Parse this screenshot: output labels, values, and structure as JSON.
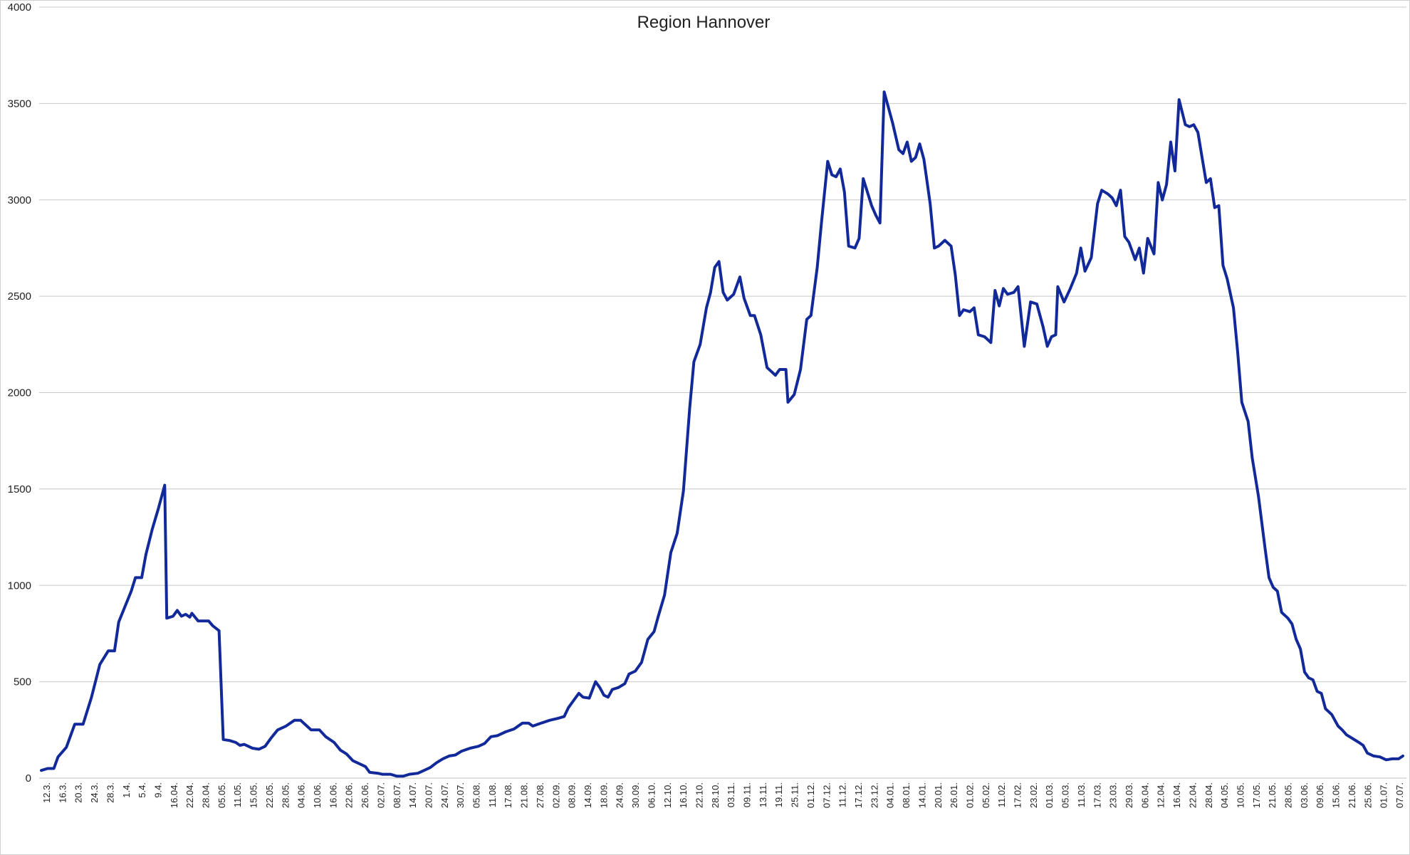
{
  "chart_data": {
    "type": "line",
    "title": "Region Hannover",
    "xlabel": "",
    "ylabel": "",
    "ylim": [
      0,
      4000
    ],
    "yticks": [
      0,
      500,
      1000,
      1500,
      2000,
      2500,
      3000,
      3500,
      4000
    ],
    "grid": "horizontal",
    "legend": "none",
    "line_color": "#12299a",
    "x_tick_labels": [
      "12.3.",
      "16.3.",
      "20.3.",
      "24.3.",
      "28.3.",
      "1.4.",
      "5.4.",
      "9.4.",
      "16.04.",
      "22.04.",
      "28.04.",
      "05.05.",
      "11.05.",
      "15.05.",
      "22.05.",
      "28.05.",
      "04.06.",
      "10.06.",
      "16.06.",
      "22.06.",
      "26.06.",
      "02.07.",
      "08.07.",
      "14.07.",
      "20.07.",
      "24.07.",
      "30.07.",
      "05.08.",
      "11.08.",
      "17.08.",
      "21.08.",
      "27.08.",
      "02.09.",
      "08.09.",
      "14.09.",
      "18.09.",
      "24.09.",
      "30.09.",
      "06.10.",
      "12.10.",
      "16.10.",
      "22.10.",
      "28.10.",
      "03.11.",
      "09.11.",
      "13.11.",
      "19.11.",
      "25.11.",
      "01.12.",
      "07.12.",
      "11.12.",
      "17.12.",
      "23.12.",
      "04.01.",
      "08.01.",
      "14.01.",
      "20.01.",
      "26.01.",
      "01.02.",
      "05.02.",
      "11.02.",
      "17.02.",
      "23.02.",
      "01.03.",
      "05.03.",
      "11.03.",
      "17.03.",
      "23.03.",
      "29.03.",
      "06.04.",
      "12.04.",
      "16.04.",
      "22.04.",
      "28.04.",
      "04.05.",
      "10.05.",
      "17.05.",
      "21.05.",
      "28.05.",
      "03.06.",
      "09.06.",
      "15.06.",
      "21.06.",
      "25.06.",
      "01.07.",
      "07.07."
    ],
    "series": [
      {
        "values": [
          [
            0,
            40
          ],
          [
            3,
            50
          ],
          [
            6,
            50
          ],
          [
            8,
            110
          ],
          [
            12,
            160
          ],
          [
            16,
            280
          ],
          [
            20,
            280
          ],
          [
            24,
            420
          ],
          [
            28,
            590
          ],
          [
            32,
            660
          ],
          [
            35,
            660
          ],
          [
            37,
            810
          ],
          [
            40,
            890
          ],
          [
            43,
            970
          ],
          [
            45,
            1040
          ],
          [
            48,
            1040
          ],
          [
            50,
            1160
          ],
          [
            53,
            1290
          ],
          [
            56,
            1400
          ],
          [
            59,
            1520
          ],
          [
            60,
            830
          ],
          [
            63,
            840
          ],
          [
            65,
            870
          ],
          [
            67,
            840
          ],
          [
            69,
            850
          ],
          [
            71,
            835
          ],
          [
            72,
            855
          ],
          [
            75,
            815
          ],
          [
            80,
            815
          ],
          [
            82,
            790
          ],
          [
            85,
            765
          ],
          [
            87,
            200
          ],
          [
            90,
            195
          ],
          [
            93,
            185
          ],
          [
            95,
            170
          ],
          [
            97,
            175
          ],
          [
            101,
            155
          ],
          [
            104,
            150
          ],
          [
            107,
            165
          ],
          [
            110,
            210
          ],
          [
            113,
            250
          ],
          [
            117,
            270
          ],
          [
            121,
            300
          ],
          [
            124,
            300
          ],
          [
            127,
            270
          ],
          [
            129,
            250
          ],
          [
            133,
            250
          ],
          [
            136,
            215
          ],
          [
            140,
            185
          ],
          [
            143,
            145
          ],
          [
            146,
            125
          ],
          [
            149,
            90
          ],
          [
            152,
            75
          ],
          [
            155,
            60
          ],
          [
            157,
            30
          ],
          [
            161,
            25
          ],
          [
            163,
            20
          ],
          [
            167,
            20
          ],
          [
            170,
            10
          ],
          [
            173,
            10
          ],
          [
            176,
            20
          ],
          [
            180,
            25
          ],
          [
            183,
            40
          ],
          [
            186,
            55
          ],
          [
            189,
            80
          ],
          [
            192,
            100
          ],
          [
            195,
            115
          ],
          [
            198,
            120
          ],
          [
            201,
            140
          ],
          [
            205,
            155
          ],
          [
            209,
            165
          ],
          [
            212,
            180
          ],
          [
            215,
            215
          ],
          [
            218,
            220
          ],
          [
            222,
            240
          ],
          [
            226,
            255
          ],
          [
            230,
            285
          ],
          [
            233,
            285
          ],
          [
            235,
            270
          ],
          [
            239,
            285
          ],
          [
            243,
            300
          ],
          [
            247,
            310
          ],
          [
            250,
            320
          ],
          [
            252,
            365
          ],
          [
            255,
            410
          ],
          [
            257,
            440
          ],
          [
            259,
            420
          ],
          [
            262,
            415
          ],
          [
            265,
            500
          ],
          [
            267,
            470
          ],
          [
            269,
            430
          ],
          [
            271,
            420
          ],
          [
            273,
            460
          ],
          [
            276,
            470
          ],
          [
            279,
            490
          ],
          [
            281,
            540
          ],
          [
            284,
            555
          ],
          [
            287,
            600
          ],
          [
            290,
            720
          ],
          [
            293,
            760
          ],
          [
            295,
            840
          ],
          [
            298,
            950
          ],
          [
            301,
            1170
          ],
          [
            304,
            1270
          ],
          [
            307,
            1490
          ],
          [
            310,
            1920
          ],
          [
            312,
            2160
          ],
          [
            315,
            2250
          ],
          [
            318,
            2440
          ],
          [
            320,
            2520
          ],
          [
            322,
            2650
          ],
          [
            324,
            2680
          ],
          [
            326,
            2520
          ],
          [
            328,
            2480
          ],
          [
            331,
            2510
          ],
          [
            334,
            2600
          ],
          [
            336,
            2490
          ],
          [
            339,
            2400
          ],
          [
            341,
            2400
          ],
          [
            344,
            2300
          ],
          [
            347,
            2130
          ],
          [
            349,
            2110
          ],
          [
            351,
            2090
          ],
          [
            353,
            2120
          ],
          [
            356,
            2120
          ],
          [
            357,
            1950
          ],
          [
            360,
            1990
          ],
          [
            363,
            2120
          ],
          [
            366,
            2380
          ],
          [
            368,
            2400
          ],
          [
            371,
            2650
          ],
          [
            373,
            2880
          ],
          [
            376,
            3200
          ],
          [
            378,
            3130
          ],
          [
            380,
            3120
          ],
          [
            382,
            3160
          ],
          [
            384,
            3040
          ],
          [
            386,
            2760
          ],
          [
            389,
            2750
          ],
          [
            391,
            2800
          ],
          [
            393,
            3110
          ],
          [
            397,
            2970
          ],
          [
            399,
            2920
          ],
          [
            401,
            2880
          ],
          [
            403,
            3560
          ],
          [
            407,
            3400
          ],
          [
            410,
            3260
          ],
          [
            412,
            3240
          ],
          [
            414,
            3300
          ],
          [
            416,
            3200
          ],
          [
            418,
            3220
          ],
          [
            420,
            3290
          ],
          [
            422,
            3210
          ],
          [
            425,
            2980
          ],
          [
            427,
            2750
          ],
          [
            429,
            2760
          ],
          [
            432,
            2790
          ],
          [
            435,
            2760
          ],
          [
            437,
            2610
          ],
          [
            439,
            2400
          ],
          [
            441,
            2430
          ],
          [
            444,
            2420
          ],
          [
            446,
            2440
          ],
          [
            448,
            2300
          ],
          [
            451,
            2290
          ],
          [
            454,
            2260
          ],
          [
            456,
            2530
          ],
          [
            458,
            2450
          ],
          [
            460,
            2540
          ],
          [
            462,
            2510
          ],
          [
            465,
            2520
          ],
          [
            467,
            2550
          ],
          [
            470,
            2240
          ],
          [
            473,
            2470
          ],
          [
            476,
            2460
          ],
          [
            479,
            2340
          ],
          [
            481,
            2240
          ],
          [
            483,
            2290
          ],
          [
            485,
            2300
          ],
          [
            486,
            2550
          ],
          [
            489,
            2470
          ],
          [
            492,
            2540
          ],
          [
            495,
            2620
          ],
          [
            497,
            2750
          ],
          [
            499,
            2630
          ],
          [
            502,
            2700
          ],
          [
            505,
            2980
          ],
          [
            507,
            3050
          ],
          [
            510,
            3030
          ],
          [
            512,
            3010
          ],
          [
            514,
            2970
          ],
          [
            516,
            3050
          ],
          [
            518,
            2810
          ],
          [
            520,
            2780
          ],
          [
            523,
            2690
          ],
          [
            525,
            2750
          ],
          [
            527,
            2620
          ],
          [
            529,
            2800
          ],
          [
            532,
            2720
          ],
          [
            534,
            3090
          ],
          [
            536,
            3000
          ],
          [
            538,
            3080
          ],
          [
            540,
            3300
          ],
          [
            542,
            3150
          ],
          [
            544,
            3520
          ],
          [
            547,
            3390
          ],
          [
            549,
            3380
          ],
          [
            551,
            3390
          ],
          [
            553,
            3350
          ],
          [
            555,
            3220
          ],
          [
            557,
            3090
          ],
          [
            559,
            3110
          ],
          [
            561,
            2960
          ],
          [
            563,
            2970
          ],
          [
            565,
            2660
          ],
          [
            567,
            2590
          ],
          [
            570,
            2440
          ],
          [
            572,
            2210
          ],
          [
            574,
            1950
          ],
          [
            577,
            1850
          ],
          [
            579,
            1660
          ],
          [
            582,
            1460
          ],
          [
            585,
            1200
          ],
          [
            587,
            1040
          ],
          [
            589,
            990
          ],
          [
            591,
            970
          ],
          [
            593,
            860
          ],
          [
            596,
            830
          ],
          [
            598,
            800
          ],
          [
            600,
            720
          ],
          [
            602,
            670
          ],
          [
            604,
            550
          ],
          [
            606,
            520
          ],
          [
            608,
            510
          ],
          [
            610,
            450
          ],
          [
            612,
            440
          ],
          [
            614,
            360
          ],
          [
            617,
            330
          ],
          [
            620,
            270
          ],
          [
            622,
            250
          ],
          [
            624,
            225
          ],
          [
            627,
            205
          ],
          [
            630,
            185
          ],
          [
            632,
            170
          ],
          [
            634,
            130
          ],
          [
            637,
            115
          ],
          [
            640,
            110
          ],
          [
            643,
            95
          ],
          [
            646,
            100
          ],
          [
            649,
            100
          ],
          [
            651,
            115
          ]
        ]
      }
    ]
  }
}
